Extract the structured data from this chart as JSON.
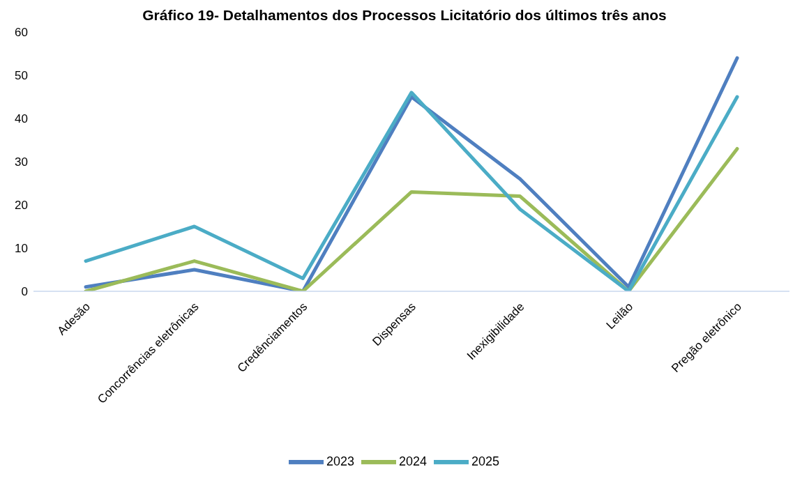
{
  "chart_data": {
    "type": "line",
    "title": "Gráfico 19- Detalhamentos dos Processos Licitatório dos últimos três anos",
    "categories": [
      "Adesão",
      "Concorrências eletrônicas",
      "Credênciamentos",
      "Dispensas",
      "Inexigibilidade",
      "Leilão",
      "Pregão eletrônico"
    ],
    "series": [
      {
        "name": "2023",
        "color": "#4f7fc0",
        "values": [
          1,
          5,
          0,
          45,
          26,
          1,
          54
        ]
      },
      {
        "name": "2024",
        "color": "#9bbb59",
        "values": [
          0,
          7,
          0,
          23,
          22,
          0,
          33
        ]
      },
      {
        "name": "2025",
        "color": "#4bacc6",
        "values": [
          7,
          15,
          3,
          46,
          19,
          0,
          45
        ]
      }
    ],
    "ylim": [
      0,
      60
    ],
    "yticks": [
      0,
      10,
      20,
      30,
      40,
      50,
      60
    ],
    "grid": false,
    "legend": "bottom",
    "marker": "none",
    "line_style": "solid"
  }
}
